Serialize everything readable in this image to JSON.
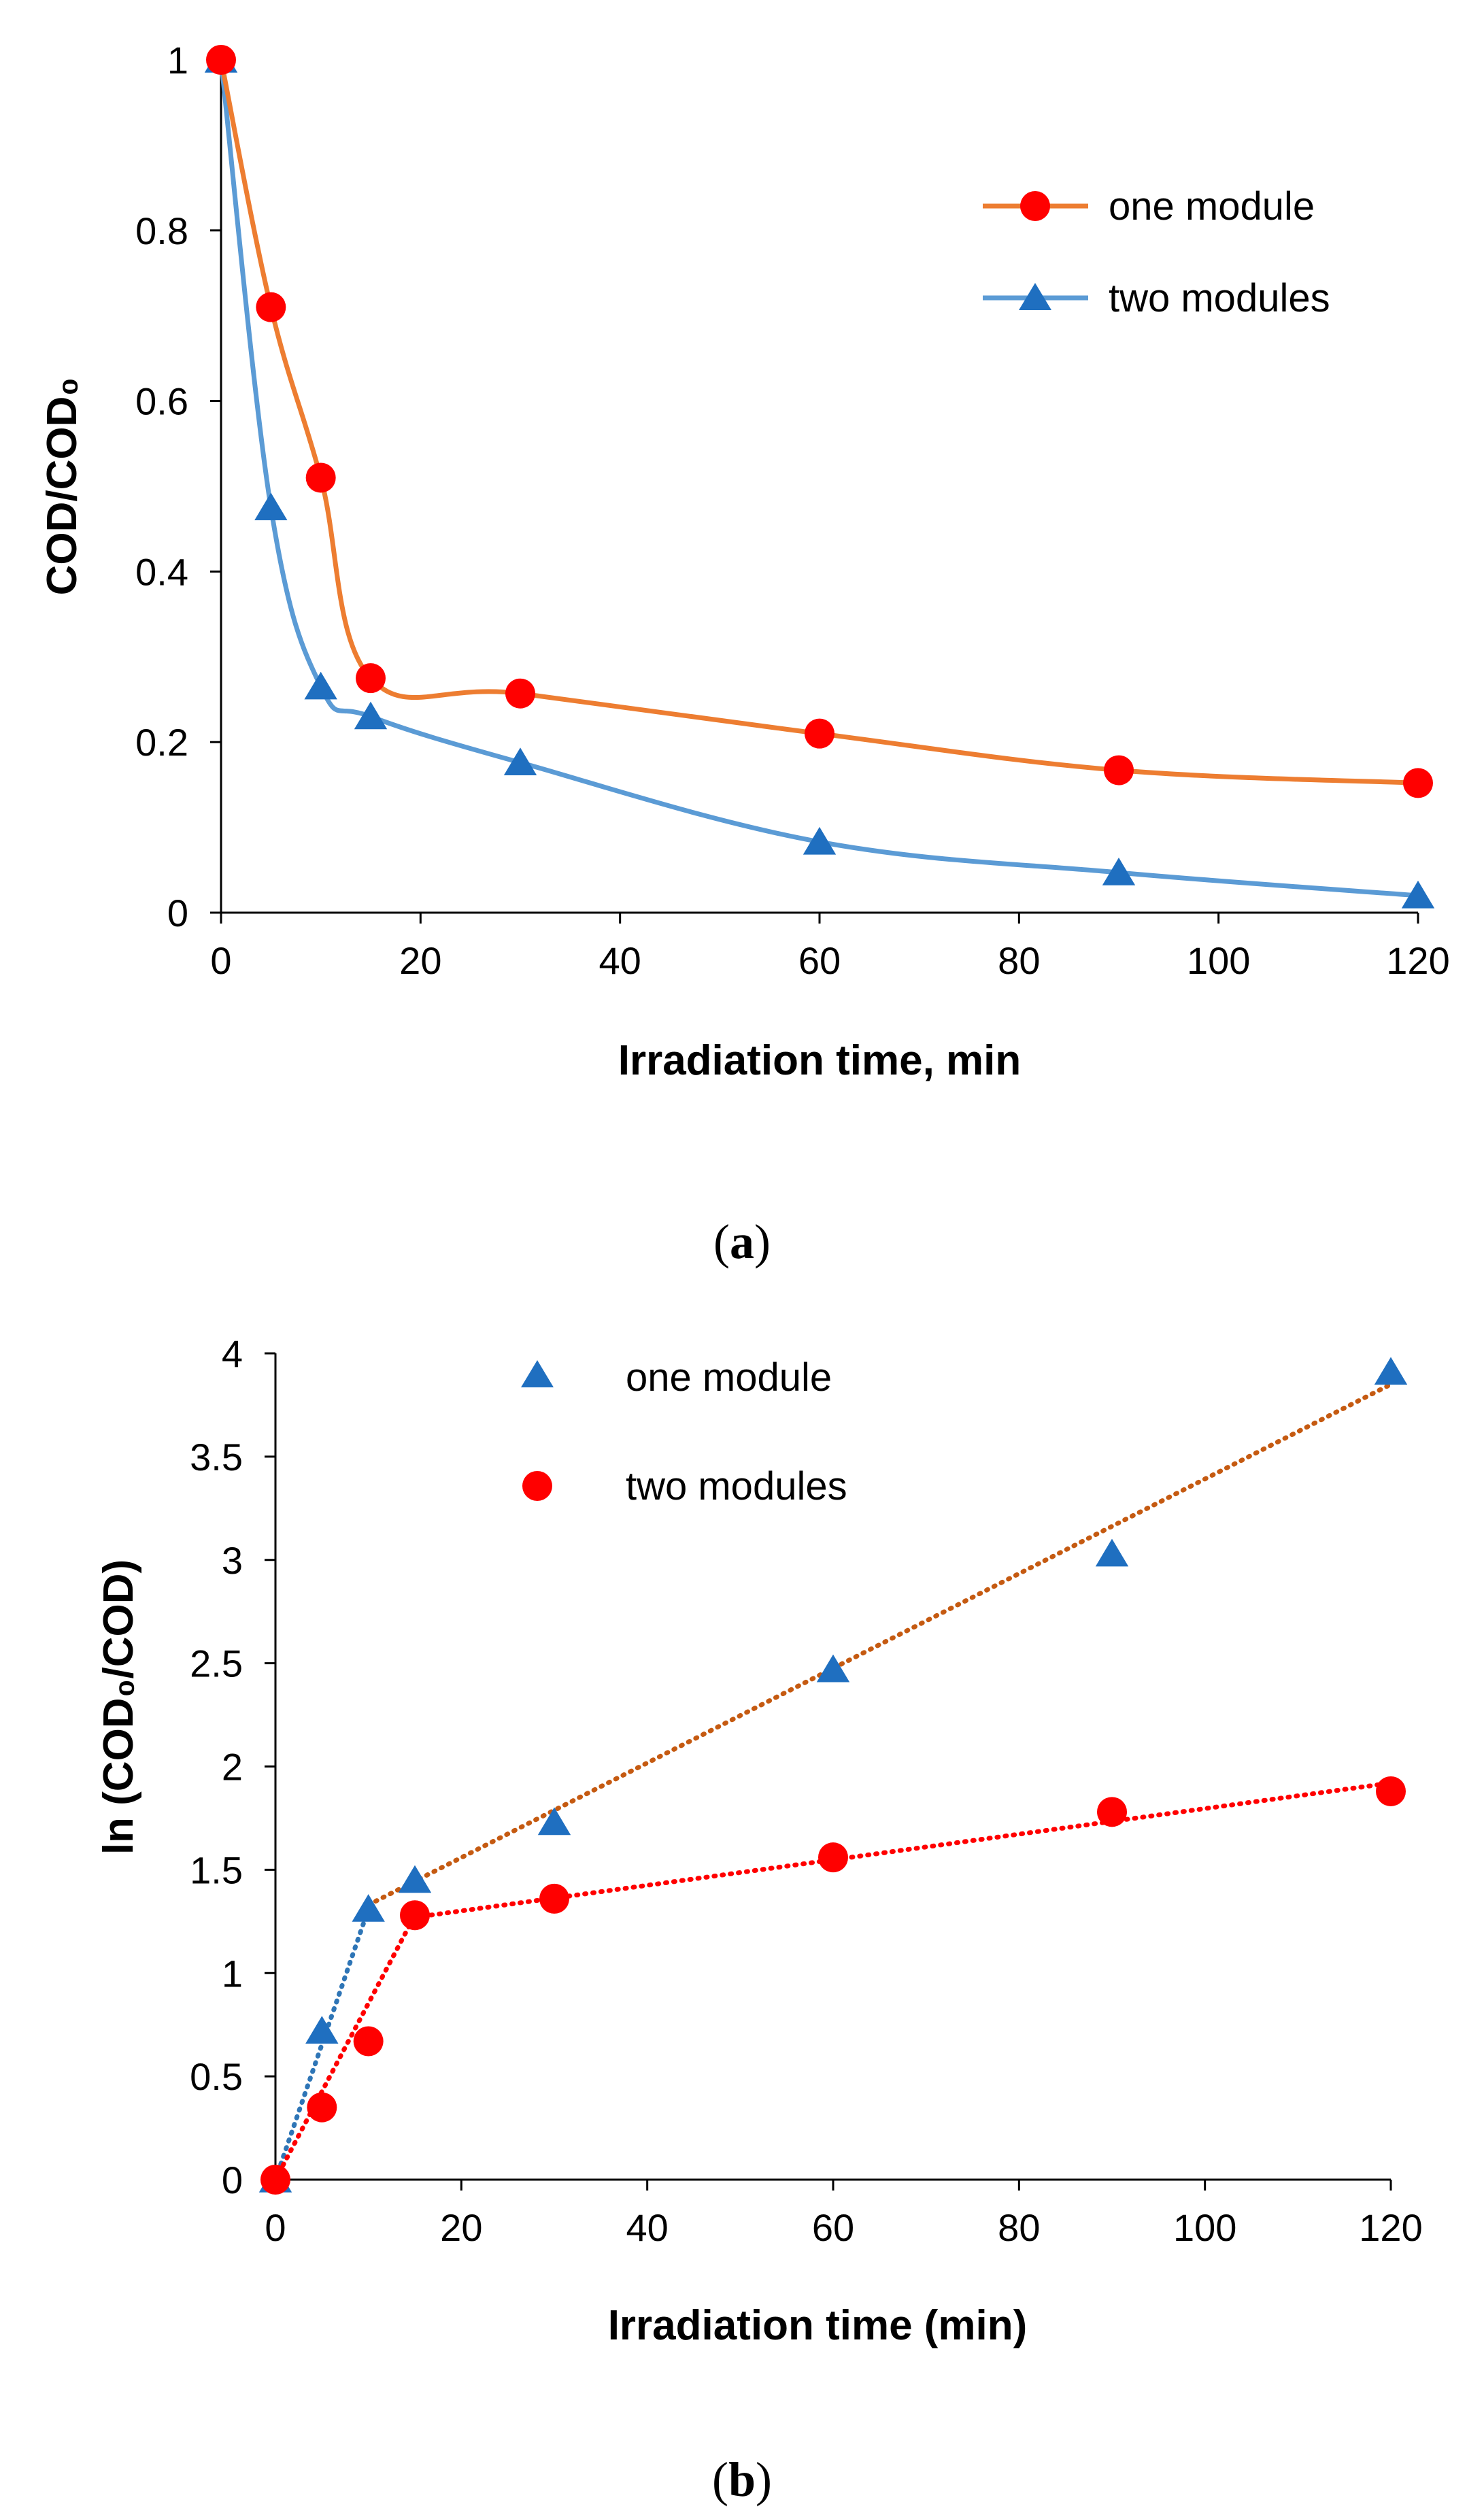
{
  "colors": {
    "orange": "#ED7D31",
    "red": "#FF0000",
    "blue": "#5B9BD5",
    "darkblue": "#1F6FC0",
    "trend_brown": "#C55A11",
    "trend_blue": "#2E75B6",
    "trend_red": "#FF0000",
    "axis": "#000000"
  },
  "chart_data": [
    {
      "type": "line",
      "caption": "(a)",
      "caption_letter": "a",
      "title": "",
      "xlabel": "Irradiation time, min",
      "ylabel": "COD/COD₀",
      "xlim": [
        0,
        120
      ],
      "ylim": [
        0,
        1
      ],
      "xticks": [
        0,
        20,
        40,
        60,
        80,
        100,
        120
      ],
      "yticks": [
        0,
        0.2,
        0.4,
        0.6,
        0.8,
        1
      ],
      "ytick_labels": [
        "0",
        "0.2",
        "0.4",
        "0.6",
        "0.8",
        "1"
      ],
      "legend_position": "top-right",
      "series": [
        {
          "name": "one module",
          "marker": "circle",
          "x": [
            0,
            5,
            10,
            15,
            30,
            60,
            90,
            120
          ],
          "values": [
            1.0,
            0.71,
            0.51,
            0.275,
            0.257,
            0.21,
            0.167,
            0.152
          ]
        },
        {
          "name": "two modules",
          "marker": "triangle",
          "x": [
            0,
            5,
            10,
            15,
            30,
            60,
            90,
            120
          ],
          "values": [
            1.0,
            0.475,
            0.265,
            0.23,
            0.176,
            0.083,
            0.047,
            0.02
          ]
        }
      ]
    },
    {
      "type": "scatter",
      "caption": "(b)",
      "caption_letter": "b",
      "title": "",
      "xlabel": "Irradiation time (min)",
      "ylabel": "ln (COD₀/COD)",
      "xlim": [
        0,
        120
      ],
      "ylim": [
        0,
        4
      ],
      "xticks": [
        0,
        20,
        40,
        60,
        80,
        100,
        120
      ],
      "yticks": [
        0,
        0.5,
        1,
        1.5,
        2,
        2.5,
        3,
        3.5,
        4
      ],
      "ytick_labels": [
        "0",
        "0.5",
        "1",
        "1.5",
        "2",
        "2.5",
        "3",
        "3.5",
        "4"
      ],
      "legend_position": "top-center",
      "series": [
        {
          "name": "one module",
          "marker": "triangle",
          "x": [
            0,
            5,
            10,
            15,
            30,
            60,
            90,
            120
          ],
          "values": [
            0,
            0.72,
            1.31,
            1.45,
            1.73,
            2.47,
            3.03,
            3.91
          ],
          "trendlines": [
            {
              "x": [
                0,
                10
              ],
              "y": [
                0,
                1.31
              ]
            },
            {
              "x": [
                10,
                120
              ],
              "y": [
                1.33,
                3.85
              ]
            }
          ]
        },
        {
          "name": "two modules",
          "marker": "circle",
          "x": [
            0,
            5,
            10,
            15,
            30,
            60,
            90,
            120
          ],
          "values": [
            0,
            0.35,
            0.67,
            1.28,
            1.36,
            1.56,
            1.78,
            1.88
          ],
          "trendlines": [
            {
              "x": [
                0,
                15
              ],
              "y": [
                0,
                1.28
              ]
            },
            {
              "x": [
                15,
                120
              ],
              "y": [
                1.27,
                1.92
              ]
            }
          ]
        }
      ]
    }
  ]
}
